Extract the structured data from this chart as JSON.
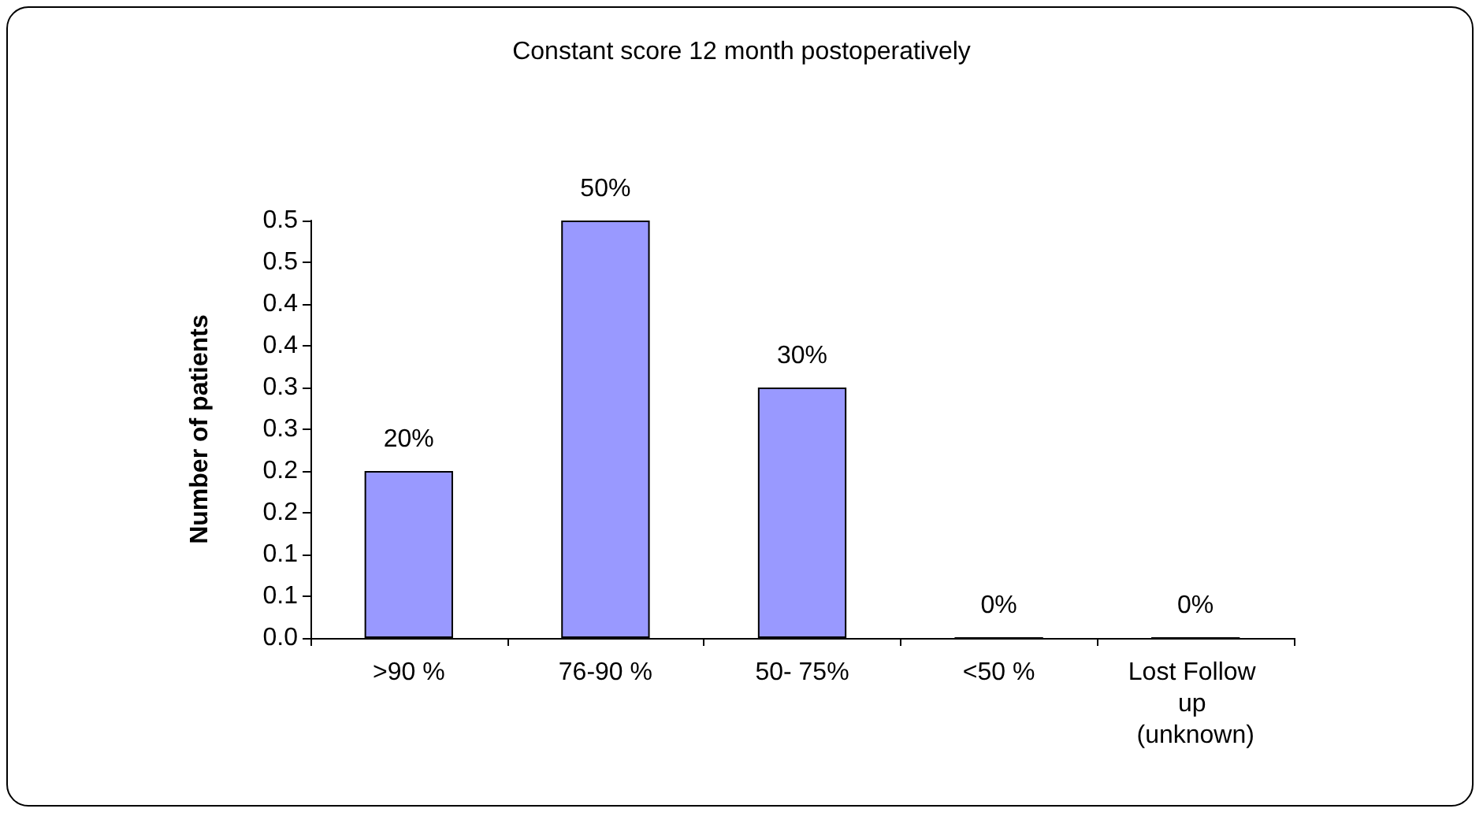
{
  "chart_data": {
    "type": "bar",
    "title": "Constant score 12 month postoperatively",
    "ylabel": "Number of patients",
    "categories": [
      ">90 %",
      "76-90 %",
      "50- 75%",
      "<50 %",
      "Lost Follow up (unknown)"
    ],
    "values": [
      0.2,
      0.5,
      0.3,
      0,
      0
    ],
    "value_labels": [
      "20%",
      "50%",
      "30%",
      "0%",
      "0%"
    ],
    "color": "#9999ff",
    "ylim": [
      0,
      0.5
    ],
    "yticks": [
      {
        "value": 0,
        "label": "0.0"
      },
      {
        "value": 0.05,
        "label": "0.1"
      },
      {
        "value": 0.1,
        "label": "0.1"
      },
      {
        "value": 0.15,
        "label": "0.2"
      },
      {
        "value": 0.2,
        "label": "0.2"
      },
      {
        "value": 0.25,
        "label": "0.3"
      },
      {
        "value": 0.3,
        "label": "0.3"
      },
      {
        "value": 0.35,
        "label": "0.4"
      },
      {
        "value": 0.4,
        "label": "0.4"
      },
      {
        "value": 0.45,
        "label": "0.5"
      },
      {
        "value": 0.5,
        "label": "0.5"
      }
    ],
    "grid": false
  }
}
